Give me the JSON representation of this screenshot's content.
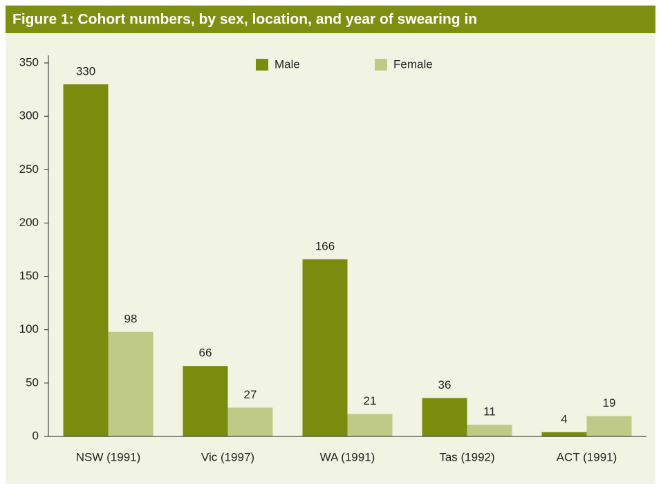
{
  "chart_data": {
    "type": "bar",
    "title": "Figure 1: Cohort numbers, by sex, location, and year of swearing in",
    "categories": [
      "NSW (1991)",
      "Vic (1997)",
      "WA (1991)",
      "Tas (1992)",
      "ACT (1991)"
    ],
    "series": [
      {
        "name": "Male",
        "color": "#7a8c0e",
        "values": [
          330,
          66,
          166,
          36,
          4
        ]
      },
      {
        "name": "Female",
        "color": "#bfca86",
        "values": [
          98,
          27,
          21,
          11,
          19
        ]
      }
    ],
    "ylim": [
      0,
      350
    ],
    "yticks": [
      0,
      50,
      100,
      150,
      200,
      250,
      300,
      350
    ],
    "legend": "top",
    "grid": false
  }
}
